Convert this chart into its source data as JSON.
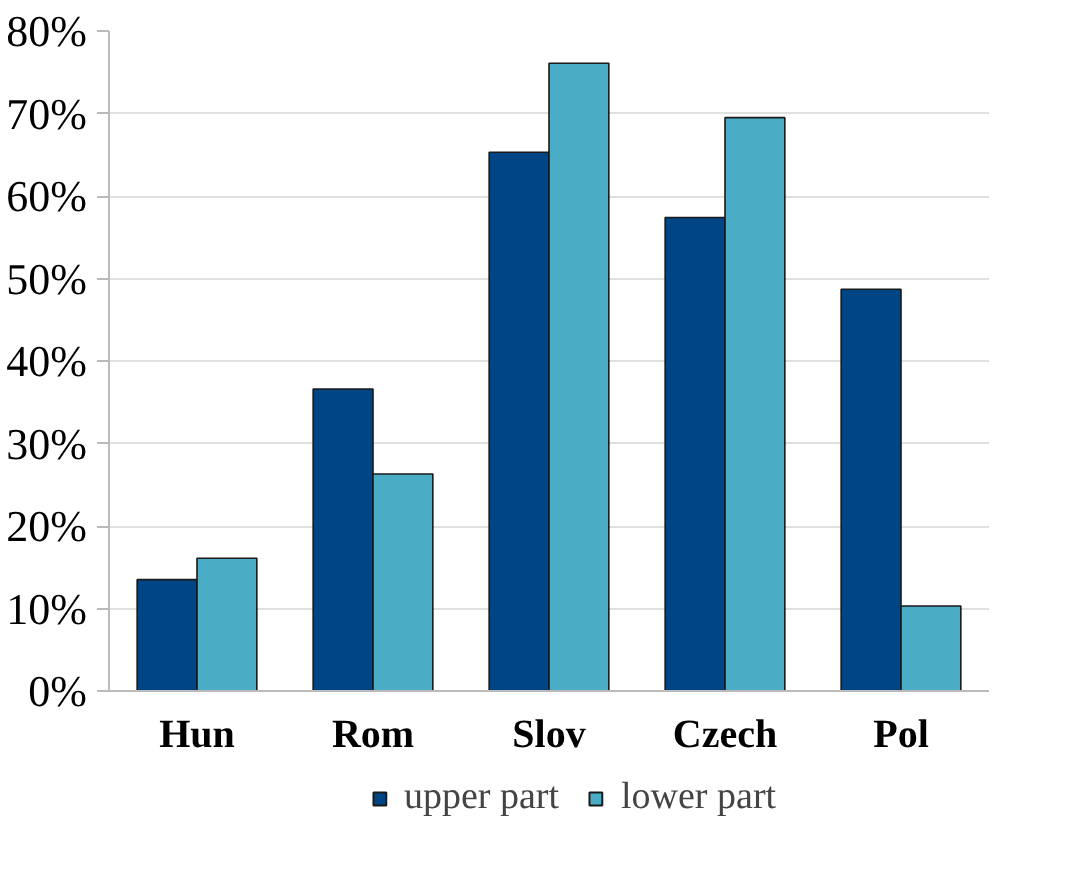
{
  "chart_data": {
    "type": "bar",
    "categories": [
      "Hun",
      "Rom",
      "Slov",
      "Czech",
      "Pol"
    ],
    "series": [
      {
        "name": "upper part",
        "color": "#004586",
        "values": [
          13.5,
          36.6,
          65.3,
          57.4,
          48.7
        ]
      },
      {
        "name": "lower part",
        "color": "#4bacc6",
        "values": [
          16.1,
          26.3,
          76.1,
          69.5,
          10.3
        ]
      }
    ],
    "ylim": [
      0,
      80
    ],
    "yticks": [
      {
        "value": 0,
        "label": "0%"
      },
      {
        "value": 10,
        "label": "10%"
      },
      {
        "value": 20,
        "label": "20%"
      },
      {
        "value": 30,
        "label": "30%"
      },
      {
        "value": 40,
        "label": "40%"
      },
      {
        "value": 50,
        "label": "50%"
      },
      {
        "value": 60,
        "label": "60%"
      },
      {
        "value": 70,
        "label": "70%"
      },
      {
        "value": 80,
        "label": "80%"
      }
    ],
    "grid": "y",
    "legend": "bottom"
  }
}
